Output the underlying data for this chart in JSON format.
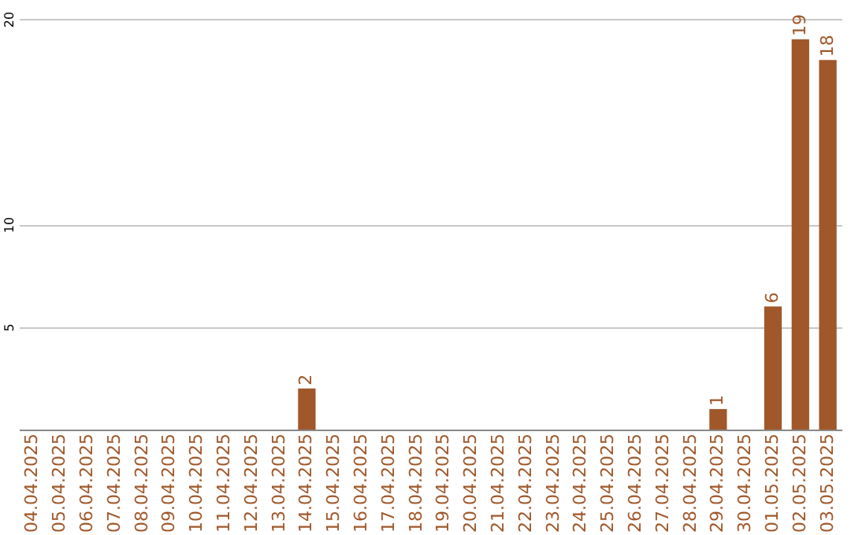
{
  "chart_data": {
    "type": "bar",
    "categories": [
      "04.04.2025",
      "05.04.2025",
      "06.04.2025",
      "07.04.2025",
      "08.04.2025",
      "09.04.2025",
      "10.04.2025",
      "11.04.2025",
      "12.04.2025",
      "13.04.2025",
      "14.04.2025",
      "15.04.2025",
      "16.04.2025",
      "17.04.2025",
      "18.04.2025",
      "19.04.2025",
      "20.04.2025",
      "21.04.2025",
      "22.04.2025",
      "23.04.2025",
      "24.04.2025",
      "25.04.2025",
      "26.04.2025",
      "27.04.2025",
      "28.04.2025",
      "29.04.2025",
      "30.04.2025",
      "01.05.2025",
      "02.05.2025",
      "03.05.2025"
    ],
    "values": [
      0,
      0,
      0,
      0,
      0,
      0,
      0,
      0,
      0,
      0,
      2,
      0,
      0,
      0,
      0,
      0,
      0,
      0,
      0,
      0,
      0,
      0,
      0,
      0,
      0,
      1,
      0,
      6,
      19,
      18
    ],
    "value_labels": [
      null,
      null,
      null,
      null,
      null,
      null,
      null,
      null,
      null,
      null,
      "2",
      null,
      null,
      null,
      null,
      null,
      null,
      null,
      null,
      null,
      null,
      null,
      null,
      null,
      null,
      "1",
      null,
      "6",
      "19",
      "18"
    ],
    "color": "#a0582a",
    "ylim": [
      0,
      20
    ],
    "yticks": [
      5,
      10,
      20
    ],
    "grid": "y"
  }
}
